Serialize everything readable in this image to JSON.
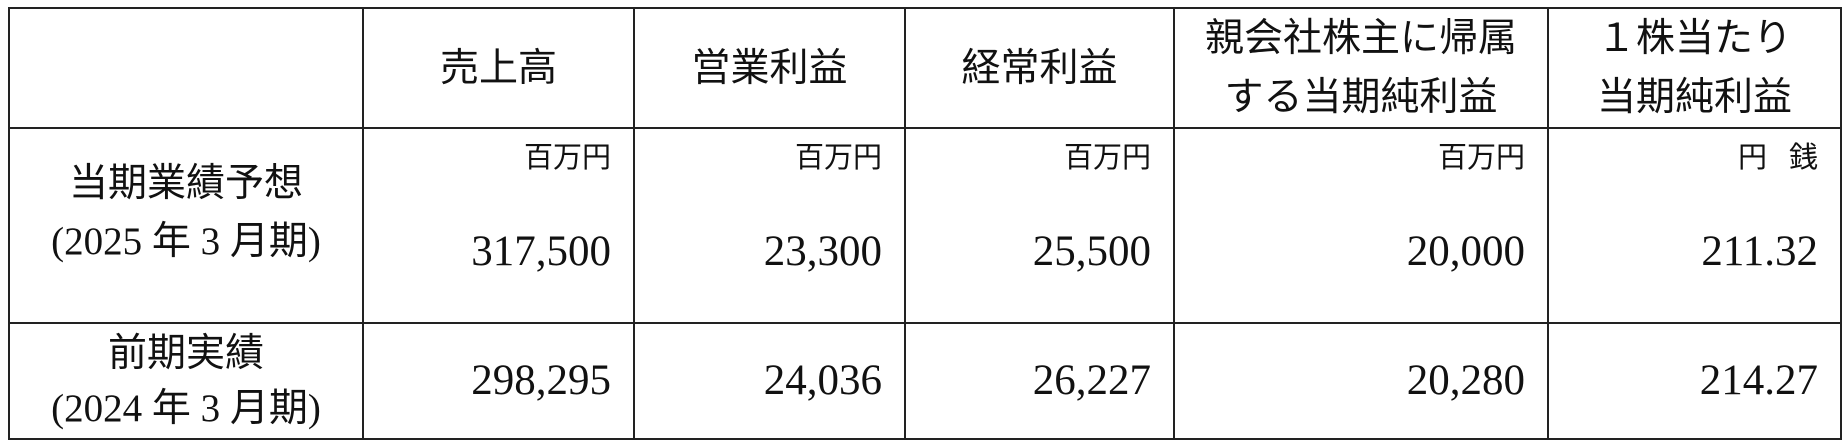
{
  "table": {
    "headers": [
      "",
      "売上高",
      "営業利益",
      "経常利益",
      [
        "親会社株主に帰属",
        "する当期純利益"
      ],
      [
        "１株当たり",
        "当期純利益"
      ]
    ],
    "units": [
      "百万円",
      "百万円",
      "百万円",
      "百万円",
      [
        "円",
        "銭"
      ]
    ],
    "rows": [
      {
        "label": [
          "当期業績予想",
          "(2025 年 3 月期)"
        ],
        "values": [
          "317,500",
          "23,300",
          "25,500",
          "20,000",
          "211.32"
        ]
      },
      {
        "label": [
          "前期実績",
          "(2024 年 3 月期)"
        ],
        "values": [
          "298,295",
          "24,036",
          "26,227",
          "20,280",
          "214.27"
        ]
      }
    ]
  }
}
